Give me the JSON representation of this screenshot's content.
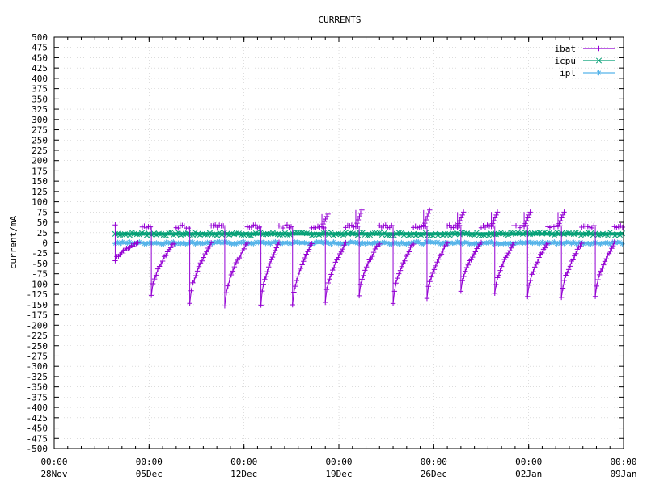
{
  "chart_data": {
    "type": "line",
    "title": "CURRENTS",
    "xlabel": "",
    "ylabel": "current/mA",
    "ylim": [
      -500,
      500
    ],
    "y_ticks": [
      500,
      475,
      450,
      425,
      400,
      375,
      350,
      325,
      300,
      275,
      250,
      225,
      200,
      175,
      150,
      125,
      100,
      75,
      50,
      25,
      0,
      -25,
      -50,
      -75,
      -100,
      -125,
      -150,
      -175,
      -200,
      -225,
      -250,
      -275,
      -300,
      -325,
      -350,
      -375,
      -400,
      -425,
      -450,
      -475,
      -500
    ],
    "x_axis": {
      "start": "2024-11-28",
      "end": "2025-01-09",
      "ticks": [
        {
          "date": "2024-11-28",
          "time": "00:00",
          "label": "28Nov"
        },
        {
          "date": "2024-12-05",
          "time": "00:00",
          "label": "05Dec"
        },
        {
          "date": "2024-12-12",
          "time": "00:00",
          "label": "12Dec"
        },
        {
          "date": "2024-12-19",
          "time": "00:00",
          "label": "19Dec"
        },
        {
          "date": "2024-12-26",
          "time": "00:00",
          "label": "26Dec"
        },
        {
          "date": "2025-01-02",
          "time": "00:00",
          "label": "02Jan"
        },
        {
          "date": "2025-01-09",
          "time": "00:00",
          "label": "09Jan"
        }
      ]
    },
    "grid": true,
    "legend_position": "top-right",
    "series": [
      {
        "name": "ibat",
        "color": "#9400d3",
        "marker": "plus",
        "cycles": [
          {
            "start": "2024-12-02T12:00",
            "drop": "2024-12-02T12:00",
            "min": -45,
            "plateau": 40,
            "peak": 40
          },
          {
            "start": "2024-12-04T12:00",
            "drop": "2024-12-05T04:00",
            "min": -125,
            "plateau": 40,
            "peak": 45
          },
          {
            "start": "2024-12-07T00:00",
            "drop": "2024-12-08T00:00",
            "min": -145,
            "plateau": 40,
            "peak": 45
          },
          {
            "start": "2024-12-09T14:00",
            "drop": "2024-12-10T14:00",
            "min": -150,
            "plateau": 40,
            "peak": 45
          },
          {
            "start": "2024-12-12T06:00",
            "drop": "2024-12-13T06:00",
            "min": -150,
            "plateau": 40,
            "peak": 45
          },
          {
            "start": "2024-12-14T14:00",
            "drop": "2024-12-15T14:00",
            "min": -150,
            "plateau": 40,
            "peak": 45
          },
          {
            "start": "2024-12-17T00:00",
            "drop": "2024-12-18T00:00",
            "min": -145,
            "plateau": 40,
            "peak": 70
          },
          {
            "start": "2024-12-19T12:00",
            "drop": "2024-12-20T12:00",
            "min": -130,
            "plateau": 40,
            "peak": 80
          },
          {
            "start": "2024-12-22T00:00",
            "drop": "2024-12-23T00:00",
            "min": -145,
            "plateau": 40,
            "peak": 45
          },
          {
            "start": "2024-12-24T12:00",
            "drop": "2024-12-25T12:00",
            "min": -135,
            "plateau": 40,
            "peak": 80
          },
          {
            "start": "2024-12-27T00:00",
            "drop": "2024-12-28T00:00",
            "min": -115,
            "plateau": 40,
            "peak": 75
          },
          {
            "start": "2024-12-29T12:00",
            "drop": "2024-12-30T12:00",
            "min": -125,
            "plateau": 40,
            "peak": 75
          },
          {
            "start": "2024-12-31T22:00",
            "drop": "2025-01-01T22:00",
            "min": -130,
            "plateau": 40,
            "peak": 75
          },
          {
            "start": "2025-01-03T10:00",
            "drop": "2025-01-04T10:00",
            "min": -135,
            "plateau": 40,
            "peak": 75
          },
          {
            "start": "2025-01-05T22:00",
            "drop": "2025-01-06T22:00",
            "min": -130,
            "plateau": 40,
            "peak": 45
          },
          {
            "start": "2025-01-08T08:00",
            "drop": "2025-01-09T00:00",
            "min": 35,
            "plateau": 40,
            "peak": 40
          }
        ]
      },
      {
        "name": "icpu",
        "color": "#009e73",
        "marker": "cross",
        "from": "2024-12-02T12:00",
        "to": "2025-01-09T00:00",
        "band": [
          18,
          26
        ]
      },
      {
        "name": "ipl",
        "color": "#56b4e9",
        "marker": "star",
        "from": "2024-12-02T12:00",
        "to": "2025-01-09T00:00",
        "band": [
          -3,
          3
        ]
      }
    ]
  }
}
